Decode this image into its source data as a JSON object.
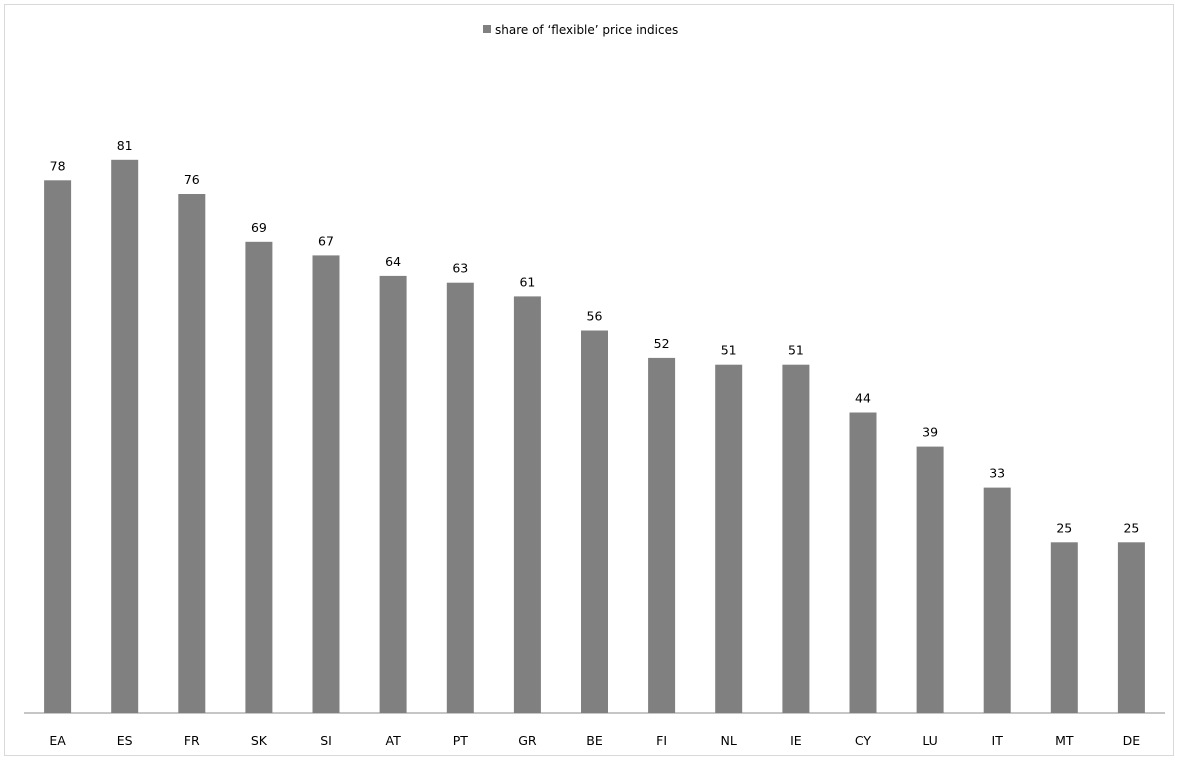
{
  "chart_data": {
    "type": "bar",
    "title": "",
    "xlabel": "",
    "ylabel": "",
    "ylim": [
      0,
      100
    ],
    "grid": false,
    "legend_position": "top-center",
    "bar_color": "#808080",
    "categories": [
      "EA",
      "ES",
      "FR",
      "SK",
      "SI",
      "AT",
      "PT",
      "GR",
      "BE",
      "FI",
      "NL",
      "IE",
      "CY",
      "LU",
      "IT",
      "MT",
      "DE"
    ],
    "series": [
      {
        "name": "share of ‘flexible’ price indices",
        "values": [
          78,
          81,
          76,
          69,
          67,
          64,
          63,
          61,
          56,
          52,
          51,
          51,
          44,
          39,
          33,
          25,
          25
        ],
        "labels": [
          "78",
          "81",
          "76",
          "69",
          "67",
          "64",
          "63",
          "61",
          "56",
          "52",
          "51",
          "51",
          "44",
          "39",
          "33",
          "25",
          "25"
        ]
      }
    ]
  }
}
